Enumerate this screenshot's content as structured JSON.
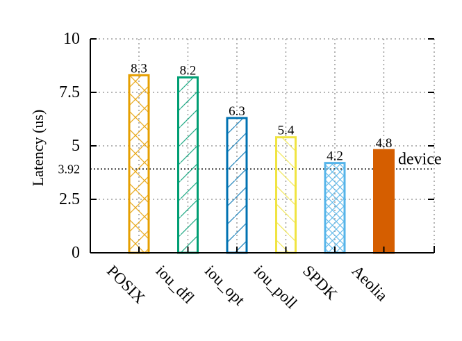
{
  "chart_data": {
    "type": "bar",
    "title": "",
    "xlabel": "",
    "ylabel": "Latency (us)",
    "ylim": [
      0,
      10
    ],
    "yticks": [
      {
        "value": 0,
        "label": "0"
      },
      {
        "value": 2.5,
        "label": "2.5"
      },
      {
        "value": 3.92,
        "label": "3.92"
      },
      {
        "value": 5,
        "label": "5"
      },
      {
        "value": 7.5,
        "label": "7.5"
      },
      {
        "value": 10,
        "label": "10"
      }
    ],
    "grid": true,
    "categories": [
      "POSIX",
      "iou_dfl",
      "iou_opt",
      "iou_poll",
      "SPDK",
      "Aeolia"
    ],
    "values": [
      8.3,
      8.2,
      6.3,
      5.4,
      4.2,
      4.8
    ],
    "value_labels": [
      "8.3",
      "8.2",
      "6.3",
      "5.4",
      "4.2",
      "4.8"
    ],
    "bar_styles": [
      {
        "color": "#E69F00",
        "pattern": "crosshatch"
      },
      {
        "color": "#009E73",
        "pattern": "forward-diagonal"
      },
      {
        "color": "#0072B2",
        "pattern": "forward-diagonal"
      },
      {
        "color": "#F0E442",
        "pattern": "back-diagonal"
      },
      {
        "color": "#56B4E9",
        "pattern": "dense-crosshatch"
      },
      {
        "color": "#D55E00",
        "pattern": "solid"
      }
    ],
    "reference_line": {
      "value": 3.92,
      "label": "device"
    }
  }
}
